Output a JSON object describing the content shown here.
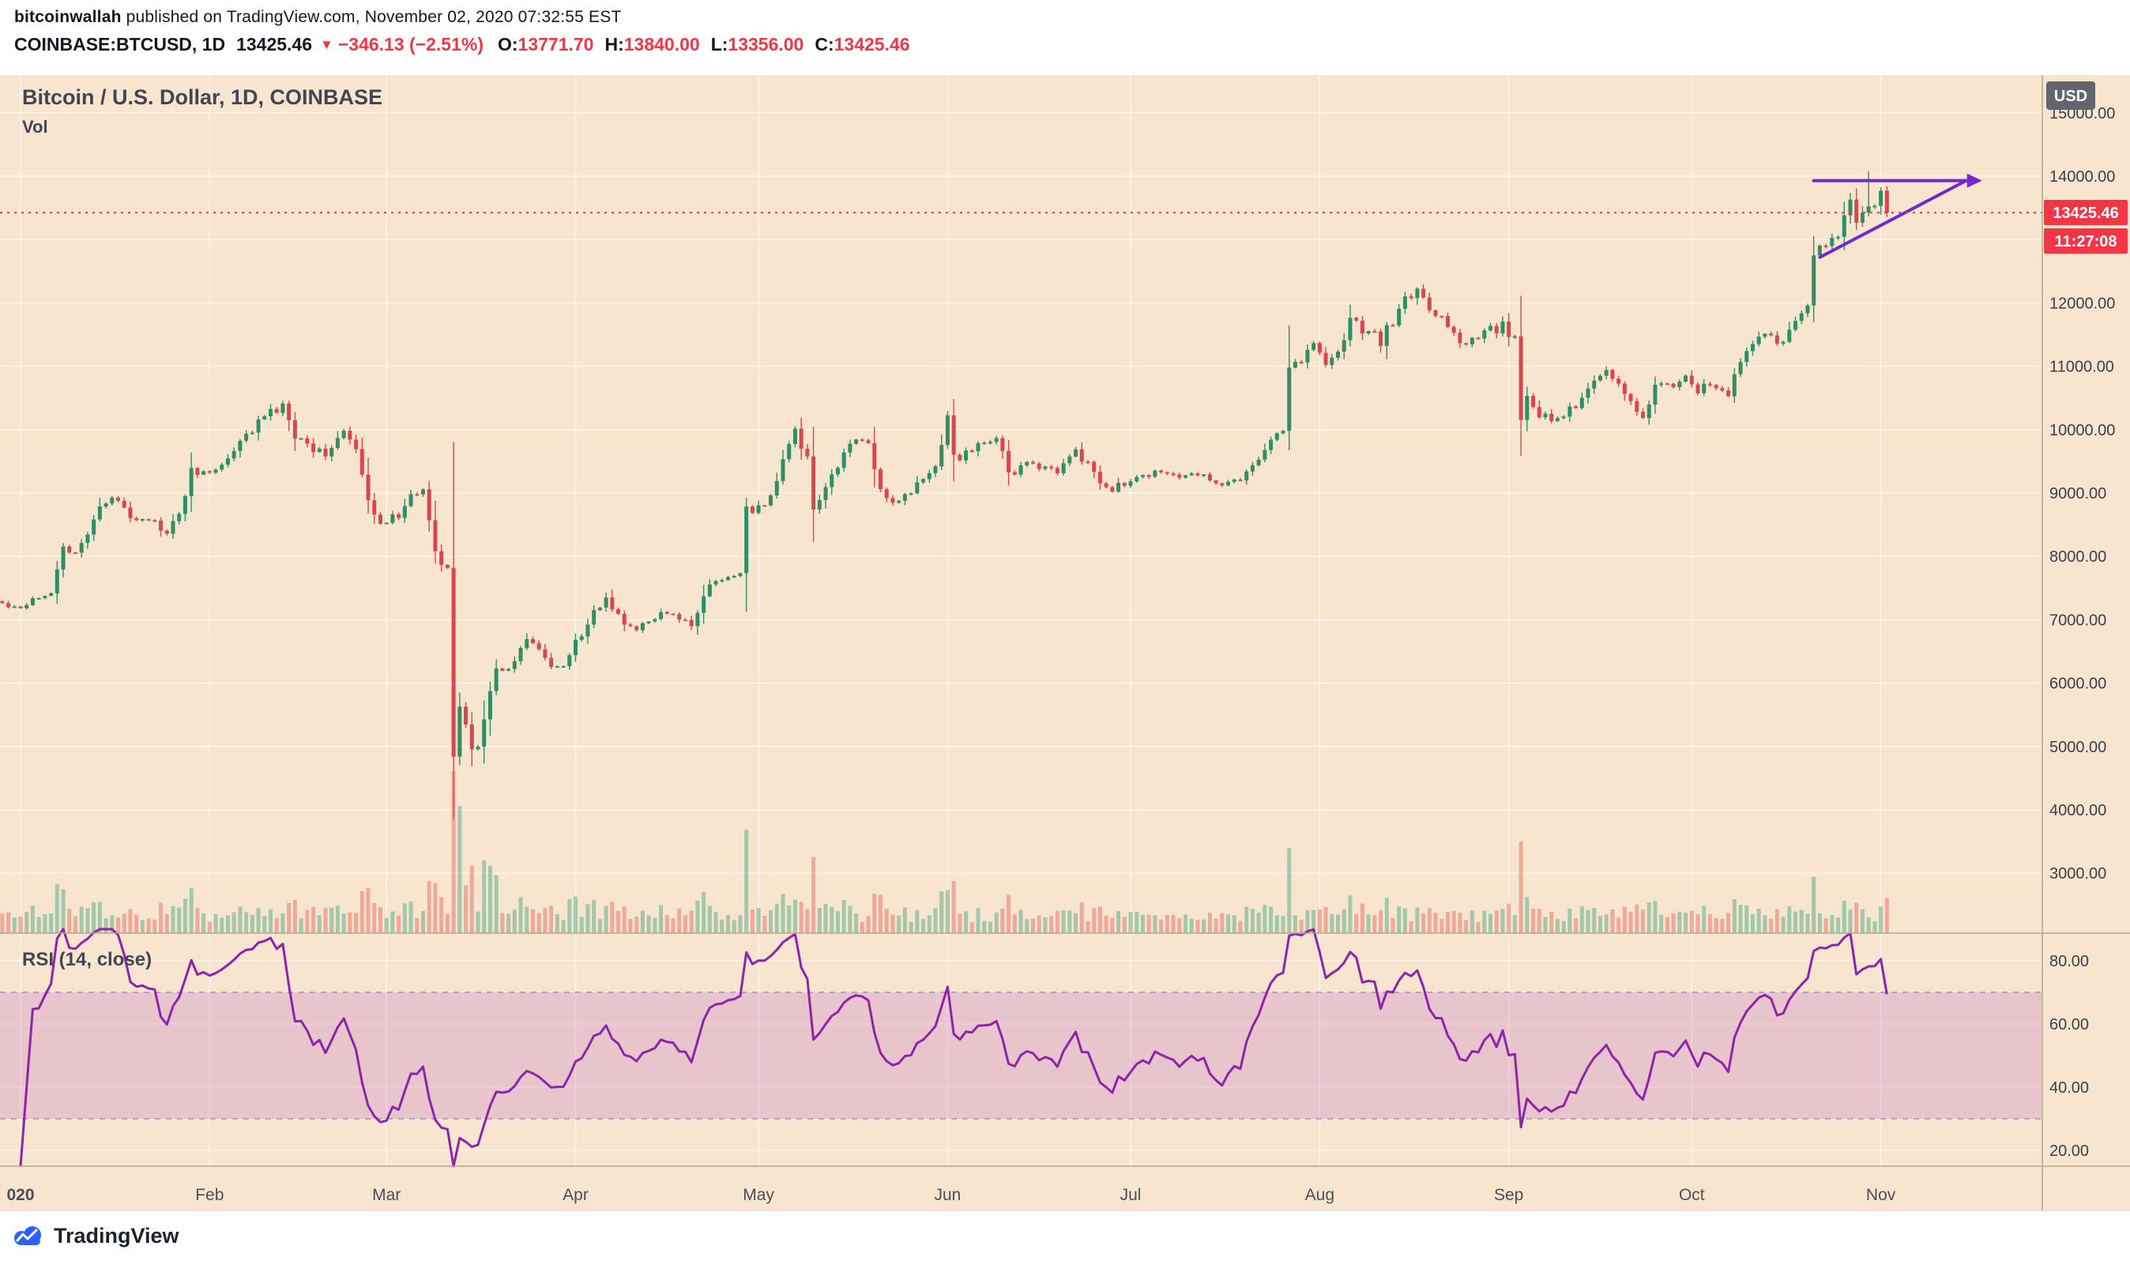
{
  "publish_header": {
    "author": "bitcoinwallah",
    "published_text": " published on TradingView.com, November 02, 2020 07:32:55 EST"
  },
  "symbol_bar": {
    "symbol_label": "COINBASE:BTCUSD, 1D",
    "last_price": "13425.46",
    "direction_icon": "▼",
    "change_text": "−346.13 (−2.51%)",
    "ohlc": [
      {
        "label": "O:",
        "value": "13771.70"
      },
      {
        "label": "H:",
        "value": "13840.00"
      },
      {
        "label": "L:",
        "value": "13356.00"
      },
      {
        "label": "C:",
        "value": "13425.46"
      }
    ]
  },
  "chart": {
    "title": "Bitcoin / U.S. Dollar, 1D, COINBASE",
    "vol_label": "Vol",
    "rsi_label": "RSI (14, close)",
    "currency_badge": "USD",
    "price_badge": "13425.46",
    "countdown_badge": "11:27:08"
  },
  "footer": {
    "brand": "TradingView"
  },
  "colors": {
    "chart_bg": "#f7e5cf",
    "candle_up": "#2f8e63",
    "candle_down": "#d8474f",
    "volume_up": "rgba(96,175,139,0.55)",
    "volume_down": "rgba(233,118,112,0.55)",
    "rsi_line": "#8e24aa",
    "rsi_band_fill": "rgba(186,104,200,0.25)",
    "rsi_band_border": "#b087c9",
    "trendline": "#7229cc",
    "last_price_red": "#f23645",
    "currency_badge_bg": "#62656e",
    "grid": "rgba(255,255,255,0.6)",
    "separator": "#b4a88f",
    "axis_text": "#3c3f46"
  },
  "chart_data": {
    "type": "candlestick",
    "symbol": "COINBASE:BTCUSD",
    "timeframe": "1D",
    "panes": [
      "price+volume",
      "rsi"
    ],
    "current_price": 13425.46,
    "last_ohlc": {
      "open": 13771.7,
      "high": 13840.0,
      "low": 13356.0,
      "close": 13425.46
    },
    "price_range_visible": [
      2100,
      15600
    ],
    "price_axis": {
      "labels": [
        {
          "text": "15000.00",
          "price": 15000
        },
        {
          "text": "14000.00",
          "price": 14000
        },
        {
          "text": "12000.00",
          "price": 12000
        },
        {
          "text": "11000.00",
          "price": 11000
        },
        {
          "text": "10000.00",
          "price": 10000
        },
        {
          "text": "9000.00",
          "price": 9000
        },
        {
          "text": "8000.00",
          "price": 8000
        },
        {
          "text": "7000.00",
          "price": 7000
        },
        {
          "text": "6000.00",
          "price": 6000
        },
        {
          "text": "5000.00",
          "price": 5000
        },
        {
          "text": "4000.00",
          "price": 4000
        },
        {
          "text": "3000.00",
          "price": 3000
        }
      ],
      "gridline_step": 1000
    },
    "rsi": {
      "period": 14,
      "band": [
        30,
        70
      ],
      "axis": [
        {
          "text": "80.00",
          "value": 80
        },
        {
          "text": "60.00",
          "value": 60
        },
        {
          "text": "40.00",
          "value": 40
        },
        {
          "text": "20.00",
          "value": 20
        }
      ]
    },
    "x_axis": {
      "months": [
        {
          "label": "020",
          "day": 0
        },
        {
          "label": "Feb",
          "day": 31
        },
        {
          "label": "Mar",
          "day": 60
        },
        {
          "label": "Apr",
          "day": 91
        },
        {
          "label": "May",
          "day": 121
        },
        {
          "label": "Jun",
          "day": 152
        },
        {
          "label": "Jul",
          "day": 182
        },
        {
          "label": "Aug",
          "day": 213
        },
        {
          "label": "Sep",
          "day": 244
        },
        {
          "label": "Oct",
          "day": 274
        },
        {
          "label": "Nov",
          "day": 305
        }
      ]
    },
    "close_anchors": [
      [
        -3,
        7250
      ],
      [
        0,
        7200
      ],
      [
        2,
        7350
      ],
      [
        5,
        7450
      ],
      [
        7,
        8150
      ],
      [
        9,
        8000
      ],
      [
        13,
        8800
      ],
      [
        16,
        8900
      ],
      [
        18,
        8650
      ],
      [
        21,
        8600
      ],
      [
        24,
        8350
      ],
      [
        26,
        8650
      ],
      [
        28,
        9350
      ],
      [
        31,
        9300
      ],
      [
        35,
        9650
      ],
      [
        39,
        10150
      ],
      [
        43,
        10350
      ],
      [
        45,
        9900
      ],
      [
        48,
        9700
      ],
      [
        50,
        9650
      ],
      [
        53,
        9950
      ],
      [
        55,
        9650
      ],
      [
        57,
        8850
      ],
      [
        59,
        8550
      ],
      [
        61,
        8600
      ],
      [
        63,
        8750
      ],
      [
        66,
        9150
      ],
      [
        68,
        8050
      ],
      [
        70,
        7900
      ],
      [
        71,
        4850
      ],
      [
        72,
        5600
      ],
      [
        74,
        5000
      ],
      [
        75,
        5050
      ],
      [
        78,
        6200
      ],
      [
        80,
        6150
      ],
      [
        83,
        6750
      ],
      [
        86,
        6350
      ],
      [
        89,
        6200
      ],
      [
        90,
        6450
      ],
      [
        92,
        6800
      ],
      [
        96,
        7350
      ],
      [
        99,
        6900
      ],
      [
        101,
        6850
      ],
      [
        104,
        7050
      ],
      [
        107,
        7100
      ],
      [
        110,
        6900
      ],
      [
        113,
        7550
      ],
      [
        116,
        7650
      ],
      [
        118,
        7750
      ],
      [
        119,
        8800
      ],
      [
        120,
        8650
      ],
      [
        123,
        8950
      ],
      [
        126,
        9800
      ],
      [
        127,
        9950
      ],
      [
        129,
        9550
      ],
      [
        130,
        8700
      ],
      [
        133,
        9300
      ],
      [
        137,
        9900
      ],
      [
        139,
        9750
      ],
      [
        141,
        9050
      ],
      [
        144,
        8850
      ],
      [
        147,
        9150
      ],
      [
        150,
        9450
      ],
      [
        151,
        9700
      ],
      [
        152,
        10200
      ],
      [
        153,
        9550
      ],
      [
        156,
        9650
      ],
      [
        160,
        9900
      ],
      [
        162,
        9300
      ],
      [
        164,
        9400
      ],
      [
        166,
        9450
      ],
      [
        170,
        9350
      ],
      [
        173,
        9700
      ],
      [
        176,
        9300
      ],
      [
        178,
        9050
      ],
      [
        181,
        9150
      ],
      [
        184,
        9250
      ],
      [
        187,
        9350
      ],
      [
        190,
        9250
      ],
      [
        193,
        9300
      ],
      [
        197,
        9150
      ],
      [
        200,
        9200
      ],
      [
        203,
        9550
      ],
      [
        206,
        9950
      ],
      [
        207,
        10000
      ],
      [
        208,
        11050
      ],
      [
        210,
        11100
      ],
      [
        212,
        11350
      ],
      [
        214,
        11100
      ],
      [
        216,
        11200
      ],
      [
        218,
        11750
      ],
      [
        220,
        11600
      ],
      [
        223,
        11400
      ],
      [
        226,
        11900
      ],
      [
        229,
        12250
      ],
      [
        231,
        11950
      ],
      [
        232,
        11850
      ],
      [
        235,
        11550
      ],
      [
        237,
        11350
      ],
      [
        240,
        11500
      ],
      [
        243,
        11650
      ],
      [
        245,
        11400
      ],
      [
        246,
        10150
      ],
      [
        247,
        10450
      ],
      [
        249,
        10250
      ],
      [
        251,
        10100
      ],
      [
        254,
        10300
      ],
      [
        256,
        10450
      ],
      [
        259,
        10900
      ],
      [
        260,
        10950
      ],
      [
        262,
        10700
      ],
      [
        264,
        10450
      ],
      [
        266,
        10250
      ],
      [
        268,
        10700
      ],
      [
        271,
        10750
      ],
      [
        273,
        10800
      ],
      [
        275,
        10620
      ],
      [
        277,
        10670
      ],
      [
        280,
        10600
      ],
      [
        282,
        11050
      ],
      [
        285,
        11550
      ],
      [
        287,
        11420
      ],
      [
        288,
        11350
      ],
      [
        290,
        11500
      ],
      [
        292,
        11750
      ],
      [
        293,
        11950
      ],
      [
        294,
        12800
      ],
      [
        296,
        12950
      ],
      [
        298,
        13050
      ],
      [
        300,
        13650
      ],
      [
        301,
        13250
      ],
      [
        302,
        13450
      ],
      [
        304,
        13550
      ],
      [
        305,
        13770
      ],
      [
        306,
        13425.46
      ]
    ],
    "overrides": [
      {
        "day": 71,
        "low": 3850
      },
      {
        "day": 303,
        "high": 14080
      },
      {
        "day": 305,
        "close": 13770.0
      },
      {
        "day": 306,
        "open": 13771.7,
        "high": 13840.0,
        "low": 13356.0,
        "close": 13425.46
      }
    ],
    "trendlines": [
      {
        "name": "resistance",
        "from": [
          294,
          13930
        ],
        "to": [
          319,
          13930
        ],
        "arrow": true
      },
      {
        "name": "support",
        "from": [
          295,
          12720
        ],
        "to": [
          319,
          13930
        ],
        "arrow": false
      }
    ]
  }
}
